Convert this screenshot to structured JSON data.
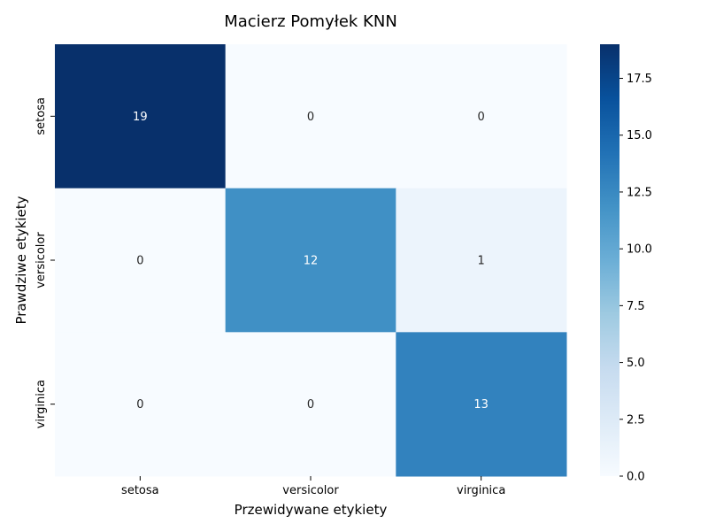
{
  "chart_data": {
    "type": "heatmap",
    "title": "Macierz Pomyłek KNN",
    "xlabel": "Przewidywane etykiety",
    "ylabel": "Prawdziwe etykiety",
    "x_categories": [
      "setosa",
      "versicolor",
      "virginica"
    ],
    "y_categories": [
      "setosa",
      "versicolor",
      "virginica"
    ],
    "values": [
      [
        19,
        0,
        0
      ],
      [
        0,
        12,
        1
      ],
      [
        0,
        0,
        13
      ]
    ],
    "colormap": "Blues",
    "color_range": [
      0,
      19
    ],
    "colorbar_ticks": [
      "0.0",
      "2.5",
      "5.0",
      "7.5",
      "10.0",
      "12.5",
      "15.0",
      "17.5"
    ],
    "colors": {
      "low": "#f7fbff",
      "high": "#08306b",
      "annotation_light": "#ffffff",
      "annotation_dark": "#262626"
    }
  }
}
